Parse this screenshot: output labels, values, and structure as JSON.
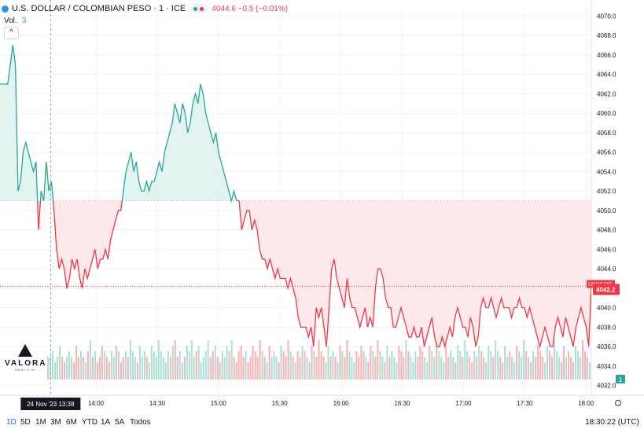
{
  "header": {
    "symbol": "U.S. DOLLAR / COLOMBIAN PESO · 1 · ICE",
    "quote": "4044.6 −0.5 (−0.01%)"
  },
  "volume_label": "Vol.",
  "volume_value": "3",
  "collapse_glyph": "^",
  "logo": {
    "name": "VALORA",
    "sub": "ANALITIK"
  },
  "timeframes": [
    {
      "label": "1D",
      "active": true
    },
    {
      "label": "5D"
    },
    {
      "label": "1M"
    },
    {
      "label": "3M"
    },
    {
      "label": "6M"
    },
    {
      "label": "YTD"
    },
    {
      "label": "1A"
    },
    {
      "label": "5A"
    },
    {
      "label": "Todos"
    }
  ],
  "clock": "18:30:22 (UTC)",
  "settings_icon": "gear-icon",
  "colors": {
    "up": "#26a69a",
    "down": "#f23645",
    "up_fill": "#d6efe9",
    "down_fill": "#fde3e5",
    "vol_up": "#9fd8cf",
    "vol_down": "#f4a6a6",
    "label_bg": "#f23645"
  },
  "chart_data": {
    "type": "area",
    "title": "U.S. DOLLAR / COLOMBIAN PESO · 1 · ICE",
    "xlabel": "",
    "ylabel": "",
    "baseline": 4051,
    "ylim": [
      4031,
      4071
    ],
    "yticks": [
      4070.0,
      4068.0,
      4066.0,
      4064.0,
      4062.0,
      4060.0,
      4058.0,
      4056.0,
      4054.0,
      4052.0,
      4050.0,
      4048.0,
      4046.0,
      4044.0,
      4042.0,
      4040.0,
      4038.0,
      4036.0,
      4034.0,
      4032.0
    ],
    "x_ticks": [
      {
        "label": "24",
        "t": 13.0
      },
      {
        "label": "14:00",
        "t": 14.0
      },
      {
        "label": "14:30",
        "t": 14.5
      },
      {
        "label": "15:00",
        "t": 15.0
      },
      {
        "label": "15:30",
        "t": 15.5
      },
      {
        "label": "16:00",
        "t": 16.0
      },
      {
        "label": "16:30",
        "t": 16.5
      },
      {
        "label": "17:00",
        "t": 17.0
      },
      {
        "label": "17:30",
        "t": 17.5
      },
      {
        "label": "18:00",
        "t": 18.0
      }
    ],
    "crosshair": {
      "t": 13.63,
      "label": "24 Nov '23   13:38"
    },
    "last_price": {
      "value": 4042.2,
      "label": "4042.2",
      "tag": "USDCOP"
    },
    "volume_badge": "1",
    "price": [
      4063,
      4063,
      4063,
      4063,
      4065,
      4067,
      4065,
      4052,
      4053,
      4056,
      4057,
      4056,
      4055,
      4054,
      4055,
      4048,
      4052,
      4051,
      4055,
      4052,
      4053,
      4050,
      4046,
      4044,
      4045,
      4044,
      4042,
      4043,
      4045,
      4044,
      4045,
      4043,
      4042,
      4044,
      4043,
      4044,
      4045,
      4046,
      4044,
      4045,
      4045,
      4046,
      4045,
      4047,
      4048,
      4049,
      4050,
      4050,
      4052,
      4054,
      4055,
      4056,
      4054,
      4055,
      4053,
      4052,
      4052,
      4053,
      4052,
      4053,
      4053,
      4054,
      4055,
      4054,
      4056,
      4057,
      4058,
      4059,
      4061,
      4060,
      4059,
      4061,
      4060,
      4058,
      4059,
      4061,
      4062,
      4061,
      4063,
      4062,
      4060,
      4059,
      4058,
      4057,
      4058,
      4056,
      4055,
      4054,
      4053,
      4052,
      4051,
      4052,
      4051,
      4051,
      4048,
      4049,
      4050,
      4050,
      4048,
      4049,
      4048,
      4046,
      4045,
      4045,
      4044,
      4045,
      4044,
      4043,
      4044,
      4043,
      4043,
      4043,
      4042,
      4043,
      4042,
      4041,
      4039,
      4038,
      4038,
      4038,
      4037,
      4038,
      4036,
      4040,
      4039,
      4040,
      4038,
      4036,
      4040,
      4044,
      4045,
      4043,
      4042,
      4041,
      4040,
      4043,
      4041,
      4040,
      4040,
      4039,
      4038,
      4039,
      4040,
      4038,
      4039,
      4038,
      4042,
      4044,
      4044,
      4043,
      4041,
      4040,
      4040,
      4038,
      4038,
      4039,
      4040,
      4039,
      4038,
      4037,
      4037,
      4038,
      4037,
      4037,
      4038,
      4036,
      4037,
      4038,
      4039,
      4037,
      4036,
      4036,
      4037,
      4036,
      4037,
      4038,
      4037,
      4039,
      4040,
      4039,
      4038,
      4038,
      4037,
      4039,
      4038,
      4036,
      4037,
      4040,
      4041,
      4040,
      4040,
      4041,
      4040,
      4039,
      4040,
      4041,
      4040,
      4040,
      4040,
      4039,
      4040,
      4040,
      4041,
      4040,
      4040,
      4039,
      4040,
      4039,
      4038,
      4037,
      4036,
      4037,
      4038,
      4037,
      4036,
      4036,
      4038,
      4039,
      4038,
      4037,
      4039,
      4038,
      4037,
      4036,
      4038,
      4039,
      4040,
      4039,
      4038,
      4036,
      4042.2
    ],
    "volume": [
      3,
      3,
      4,
      2,
      3,
      5,
      3,
      2,
      3,
      4,
      3,
      2,
      5,
      3,
      4,
      3,
      2,
      4,
      6,
      3,
      4,
      2,
      3,
      5,
      4,
      3,
      2,
      4,
      3,
      5,
      4,
      2,
      3,
      4,
      3,
      6,
      4,
      3,
      2,
      5,
      3,
      4,
      3,
      2,
      5,
      4,
      3,
      6,
      4,
      3,
      2,
      4,
      3,
      5,
      6,
      3,
      4,
      2,
      3,
      5,
      4,
      6,
      3,
      4,
      5,
      2,
      3,
      4,
      6,
      3,
      4,
      5,
      3,
      2,
      4,
      3,
      5,
      4,
      6,
      3,
      2,
      4,
      5,
      3,
      4,
      2,
      3,
      5,
      4,
      3,
      6,
      4,
      3,
      2,
      5,
      3,
      4,
      3,
      2,
      5,
      4,
      3,
      6,
      4,
      3,
      2,
      4,
      3,
      5,
      4,
      3,
      2,
      5,
      4,
      3,
      6,
      4,
      3,
      2,
      5,
      3,
      4,
      3,
      2,
      5,
      4,
      3,
      6,
      4,
      3,
      2,
      4,
      3,
      5,
      4,
      3,
      2,
      5,
      4,
      3,
      6,
      4,
      3,
      2,
      5,
      3,
      4,
      3,
      2,
      5,
      4,
      3,
      6,
      4,
      3,
      2,
      4,
      3,
      5,
      4,
      3,
      2,
      5,
      4,
      3,
      6,
      4,
      3,
      2,
      5,
      3,
      4,
      3,
      2,
      5,
      4,
      3,
      6,
      4,
      3,
      2,
      4,
      3,
      5,
      4,
      3,
      2,
      5,
      4,
      3,
      6,
      4,
      3,
      2,
      5,
      3,
      4,
      3,
      2,
      5,
      4,
      3,
      6,
      4,
      3,
      2,
      4,
      3,
      5,
      4,
      3,
      2,
      5,
      4,
      3,
      6,
      4,
      3,
      2,
      5,
      3,
      4,
      3,
      2,
      5,
      4,
      3,
      6,
      4,
      3,
      2
    ]
  }
}
